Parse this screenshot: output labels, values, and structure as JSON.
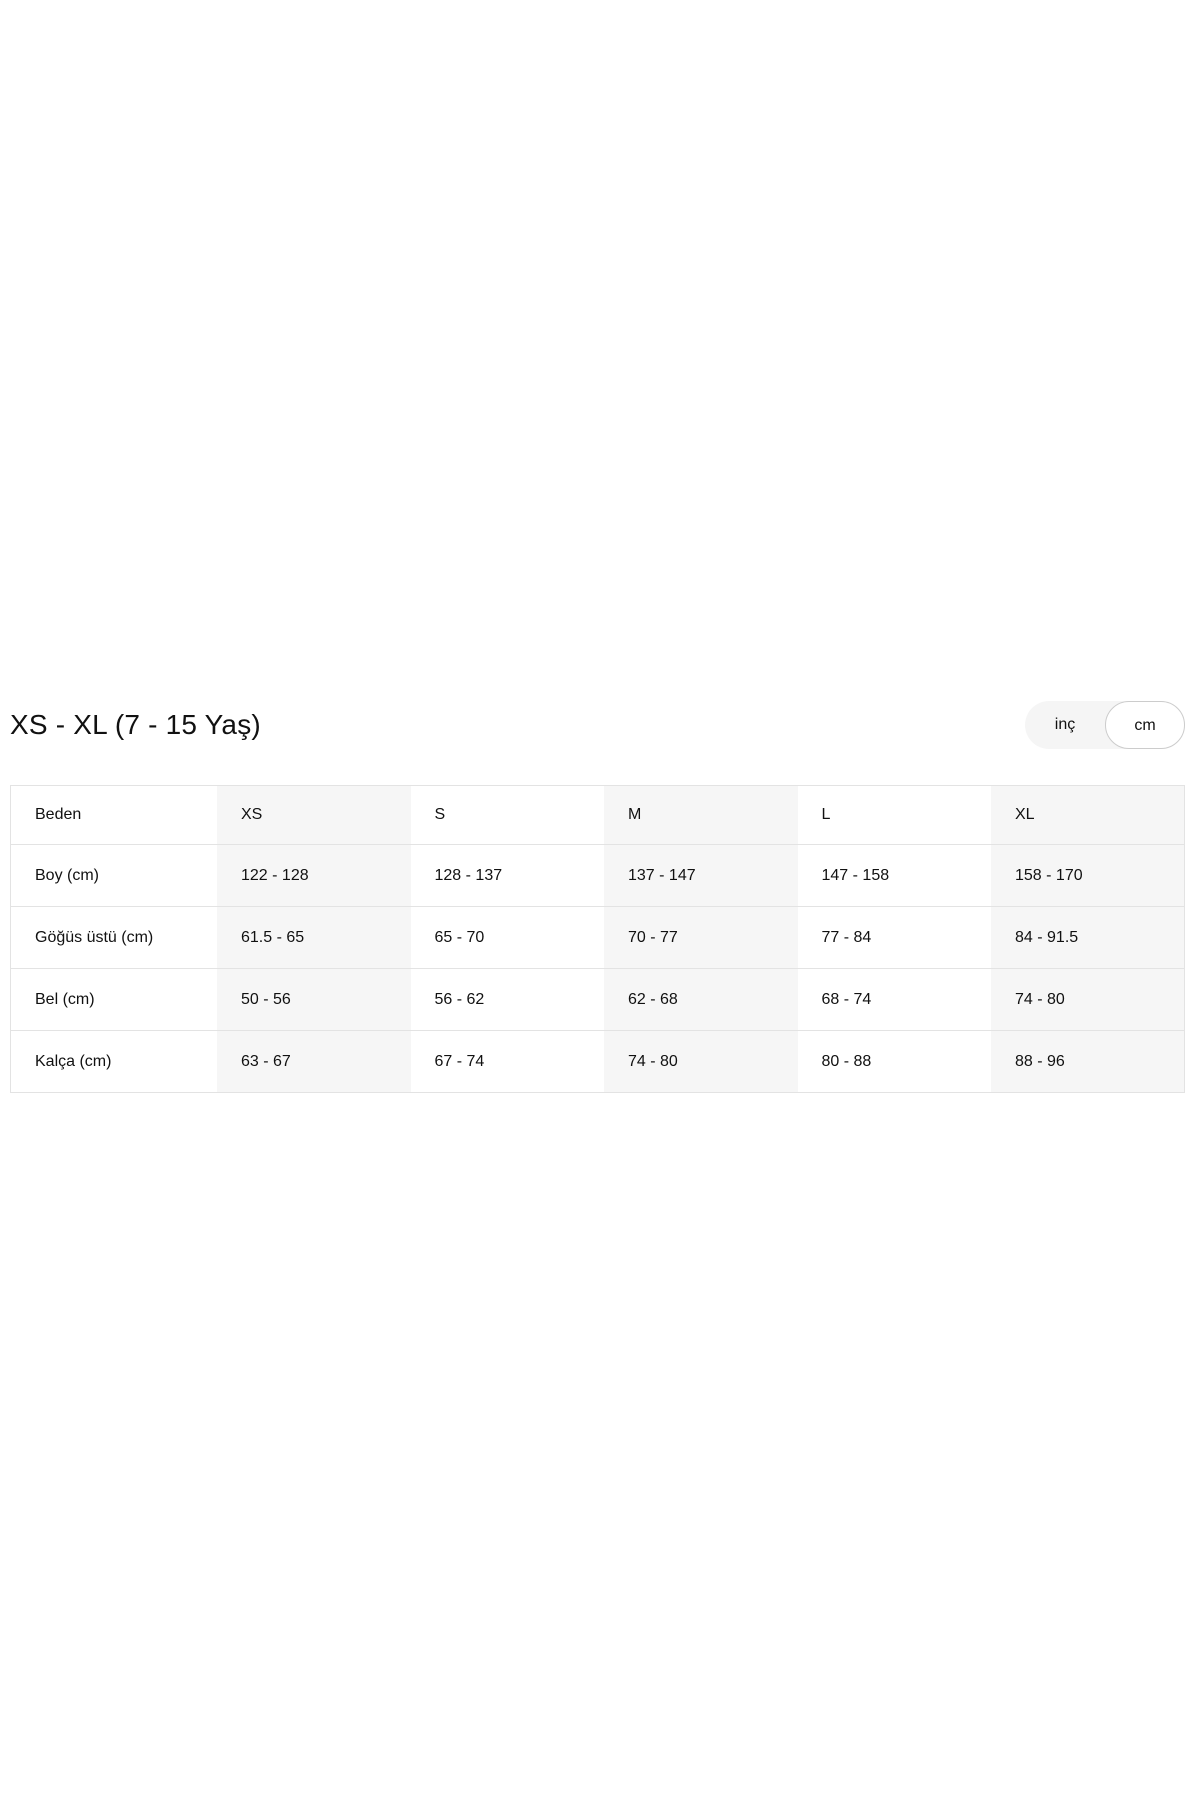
{
  "header": {
    "title": "XS - XL (7 - 15 Yaş)"
  },
  "unit_toggle": {
    "options": [
      {
        "key": "inc",
        "label": "inç",
        "selected": false
      },
      {
        "key": "cm",
        "label": "cm",
        "selected": true
      }
    ]
  },
  "size_table": {
    "columns": [
      "Beden",
      "XS",
      "S",
      "M",
      "L",
      "XL"
    ],
    "rows": [
      {
        "label": "Boy (cm)",
        "values": [
          "122 - 128",
          "128 - 137",
          "137 - 147",
          "147 - 158",
          "158 - 170"
        ]
      },
      {
        "label": "Göğüs üstü (cm)",
        "values": [
          "61.5 - 65",
          "65 - 70",
          "70 - 77",
          "77 - 84",
          "84 - 91.5"
        ]
      },
      {
        "label": "Bel (cm)",
        "values": [
          "50 - 56",
          "56 - 62",
          "62 - 68",
          "68 - 74",
          "74 - 80"
        ]
      },
      {
        "label": "Kalça (cm)",
        "values": [
          "63 - 67",
          "67 - 74",
          "74 - 80",
          "80 - 88",
          "88 - 96"
        ]
      }
    ]
  },
  "colors": {
    "text": "#111111",
    "stripe": "#f6f6f6",
    "border": "#e3e3e3",
    "toggle_bg": "#f5f5f5",
    "toggle_selected_bg": "#ffffff",
    "toggle_selected_border": "#cccccc",
    "page_bg": "#ffffff"
  }
}
